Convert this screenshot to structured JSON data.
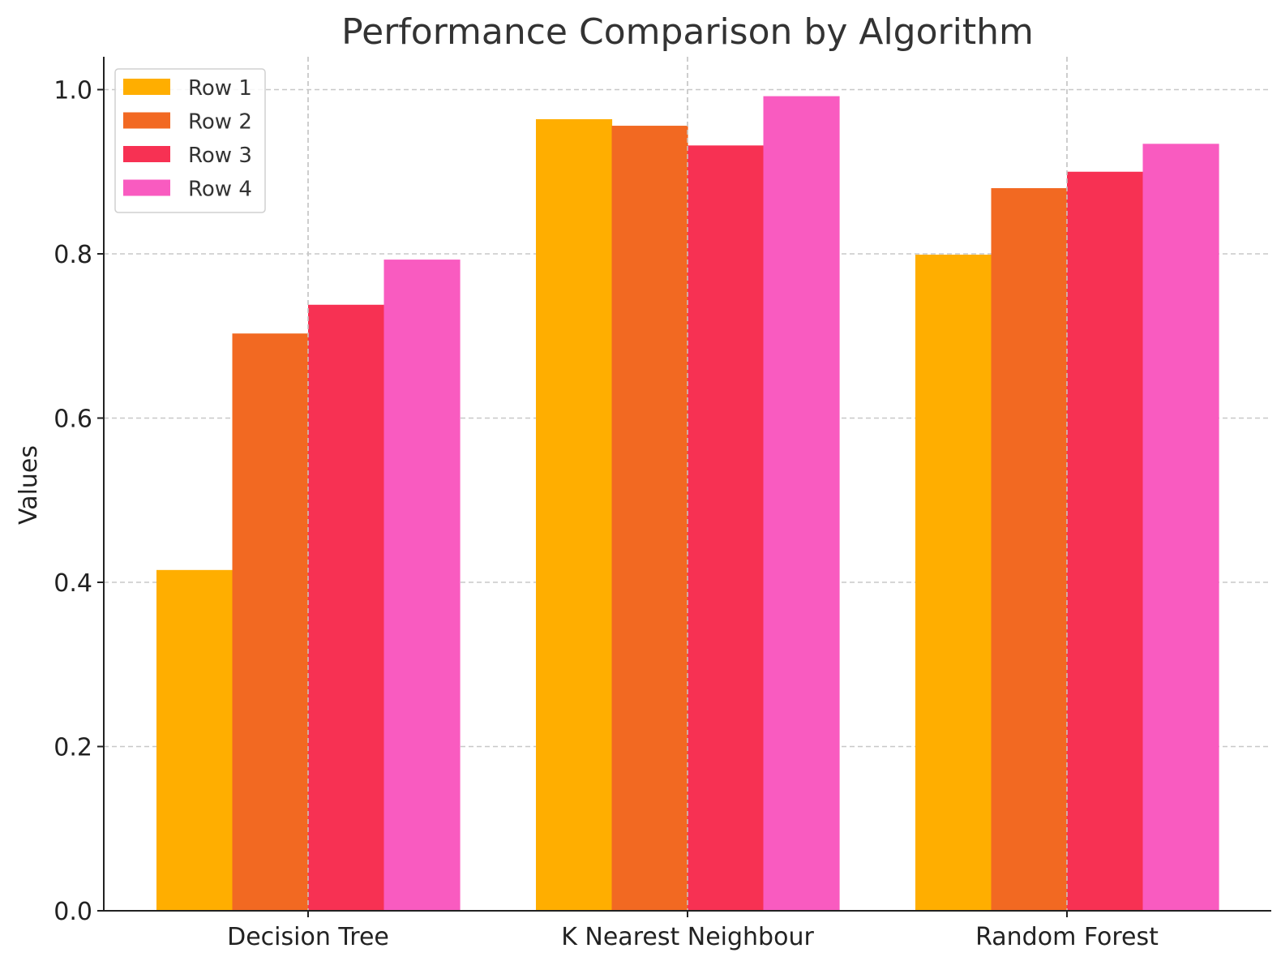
{
  "chart_data": {
    "type": "bar",
    "title": "Performance Comparison by Algorithm",
    "xlabel": "",
    "ylabel": "Values",
    "categories": [
      "Decision Tree",
      "K Nearest Neighbour",
      "Random Forest"
    ],
    "series": [
      {
        "name": "Row 1",
        "color": "#FFAE00",
        "values": [
          0.415,
          0.964,
          0.799
        ]
      },
      {
        "name": "Row 2",
        "color": "#F26922",
        "values": [
          0.703,
          0.956,
          0.88
        ]
      },
      {
        "name": "Row 3",
        "color": "#F73153",
        "values": [
          0.738,
          0.932,
          0.9
        ]
      },
      {
        "name": "Row 4",
        "color": "#F95BC0",
        "values": [
          0.793,
          0.992,
          0.934
        ]
      }
    ],
    "ylim": [
      0,
      1.04
    ],
    "yticks": [
      "0.0",
      "0.2",
      "0.4",
      "0.6",
      "0.8",
      "1.0"
    ],
    "grid": true,
    "legend_position": "top-left"
  }
}
